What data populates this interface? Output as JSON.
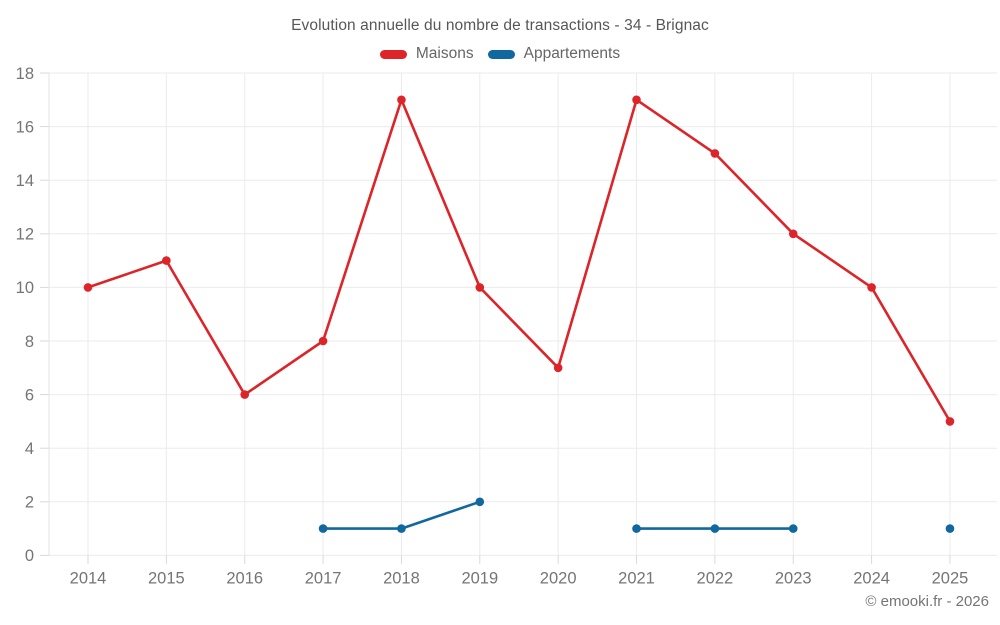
{
  "page": {
    "title": "Evolution annuelle du nombre de transactions - 34 - Brignac",
    "footer": "© emooki.fr - 2026"
  },
  "legend": {
    "items": [
      {
        "label": "Maisons",
        "color": "#dc2429"
      },
      {
        "label": "Appartements",
        "color": "#10689e"
      }
    ]
  },
  "chart_data": {
    "type": "line",
    "title": "Evolution annuelle du nombre de transactions - 34 - Brignac",
    "categories": [
      "2014",
      "2015",
      "2016",
      "2017",
      "2018",
      "2019",
      "2020",
      "2021",
      "2022",
      "2023",
      "2024",
      "2025"
    ],
    "series": [
      {
        "name": "Maisons",
        "color": "#dc2429",
        "values": [
          10,
          11,
          6,
          8,
          17,
          10,
          7,
          17,
          15,
          12,
          10,
          5
        ]
      },
      {
        "name": "Appartements",
        "color": "#10689e",
        "values": [
          null,
          null,
          null,
          1,
          1,
          2,
          null,
          1,
          1,
          1,
          null,
          1
        ]
      }
    ],
    "xlabel": "",
    "ylabel": "",
    "ylim": [
      0,
      18
    ],
    "yticks": [
      0,
      2,
      4,
      6,
      8,
      10,
      12,
      14,
      16,
      18
    ],
    "grid": true,
    "legend_position": "top",
    "gap_policy": "no-span"
  },
  "colors": {
    "grid": "#ebebeb",
    "tick": "#d9d9d9",
    "axis_border": "#e3e3e3",
    "axis_label": "#757575",
    "title_text": "#575757",
    "legend_text": "#666666",
    "footer_text": "#757575"
  }
}
